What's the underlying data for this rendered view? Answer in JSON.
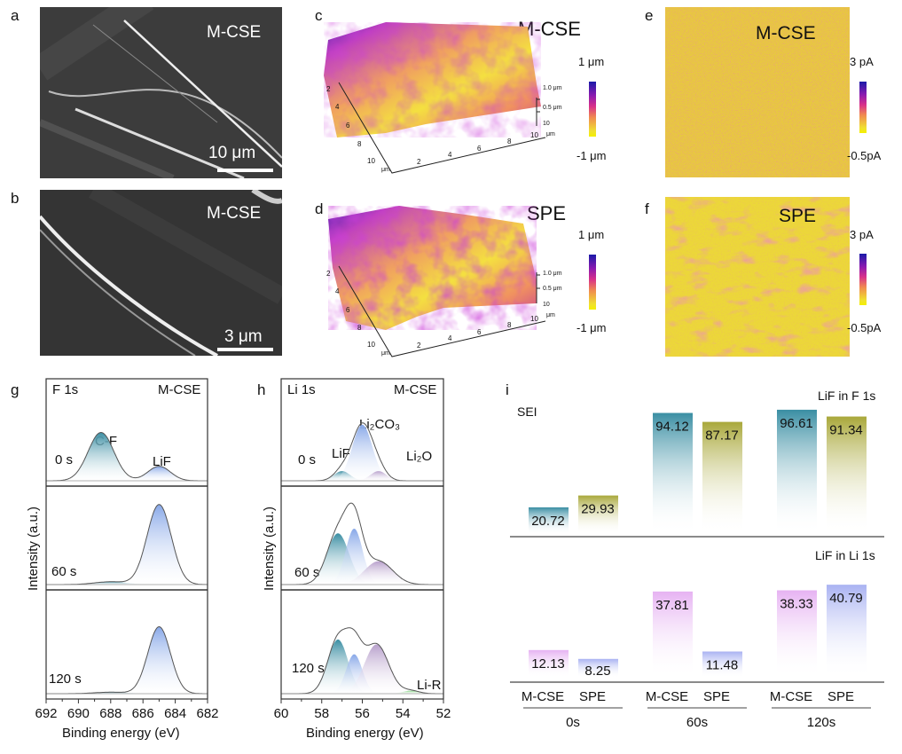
{
  "panels": {
    "a": {
      "letter": "a",
      "label": "M-CSE",
      "scale": "10 μm"
    },
    "b": {
      "letter": "b",
      "label": "M-CSE",
      "scale": "3 μm"
    },
    "c": {
      "letter": "c",
      "label": "M-CSE",
      "cb_max": "1 μm",
      "cb_min": "-1 μm"
    },
    "d": {
      "letter": "d",
      "label": "SPE",
      "cb_max": "1 μm",
      "cb_min": "-1 μm"
    },
    "e": {
      "letter": "e",
      "label": "M-CSE",
      "cb_max": "3 pA",
      "cb_min": "-0.5pA"
    },
    "f": {
      "letter": "f",
      "label": "SPE",
      "cb_max": "3 pA",
      "cb_min": "-0.5pA"
    },
    "g": {
      "letter": "g"
    },
    "h": {
      "letter": "h"
    },
    "i": {
      "letter": "i"
    }
  },
  "afm_axes": {
    "xy_ticks": [
      "2",
      "4",
      "6",
      "8",
      "10"
    ],
    "unit": "μm",
    "z_ticks": [
      "1.0 μm",
      "0.5 μm",
      "10"
    ],
    "z_unit": "μm"
  },
  "colors": {
    "teal": "#3a8ea3",
    "blue": "#88a8e8",
    "purple": "#b8a0cc",
    "green": "#7dd37d",
    "olive": "#a9a83a",
    "pink": "#e6b2f2",
    "lavender": "#a9b2f2"
  },
  "chart_data": [
    {
      "type": "line",
      "id": "g",
      "title": "F 1s",
      "sample": "M-CSE",
      "xlabel": "Binding energy (eV)",
      "ylabel": "Intensity (a.u.)",
      "xlim": [
        692,
        682
      ],
      "xticks": [
        "692",
        "690",
        "688",
        "686",
        "684",
        "682"
      ],
      "stacks": [
        {
          "label": "0 s",
          "peaks": [
            {
              "name": "C-F",
              "center": 688.6,
              "amp": 0.5,
              "sigma": 0.8,
              "color": "teal"
            },
            {
              "name": "LiF",
              "center": 685.0,
              "amp": 0.15,
              "sigma": 0.7,
              "color": "blue"
            }
          ]
        },
        {
          "label": "60 s",
          "peaks": [
            {
              "name": "C-F",
              "center": 688.0,
              "amp": 0.03,
              "sigma": 1.0,
              "color": "teal"
            },
            {
              "name": "LiF",
              "center": 685.0,
              "amp": 0.86,
              "sigma": 0.75,
              "color": "blue"
            }
          ]
        },
        {
          "label": "120 s",
          "peaks": [
            {
              "name": "C-F",
              "center": 688.0,
              "amp": 0.015,
              "sigma": 1.0,
              "color": "teal"
            },
            {
              "name": "LiF",
              "center": 685.0,
              "amp": 0.68,
              "sigma": 0.7,
              "color": "blue"
            }
          ]
        }
      ],
      "annotations": [
        "C-F",
        "LiF"
      ]
    },
    {
      "type": "line",
      "id": "h",
      "title": "Li 1s",
      "sample": "M-CSE",
      "xlabel": "Binding energy (eV)",
      "ylabel": "Intensity (a.u.)",
      "xlim": [
        60,
        52
      ],
      "xticks": [
        "60",
        "58",
        "56",
        "54",
        "52"
      ],
      "stacks": [
        {
          "label": "0 s",
          "peaks": [
            {
              "name": "LiF",
              "center": 57.0,
              "amp": 0.1,
              "sigma": 0.4,
              "color": "teal"
            },
            {
              "name": "Li₂CO₃",
              "center": 56.0,
              "amp": 0.58,
              "sigma": 0.5,
              "color": "blue"
            },
            {
              "name": "Li₂O",
              "center": 55.2,
              "amp": 0.1,
              "sigma": 0.4,
              "color": "purple"
            }
          ]
        },
        {
          "label": "60 s",
          "peaks": [
            {
              "name": "LiF",
              "center": 57.2,
              "amp": 0.55,
              "sigma": 0.55,
              "color": "teal"
            },
            {
              "name": "Li₂CO₃",
              "center": 56.4,
              "amp": 0.6,
              "sigma": 0.42,
              "color": "blue"
            },
            {
              "name": "Li₂O",
              "center": 55.2,
              "amp": 0.25,
              "sigma": 0.7,
              "color": "purple"
            }
          ]
        },
        {
          "label": "120 s",
          "peaks": [
            {
              "name": "LiF",
              "center": 57.2,
              "amp": 0.55,
              "sigma": 0.5,
              "color": "teal"
            },
            {
              "name": "Li₂CO₃",
              "center": 56.4,
              "amp": 0.4,
              "sigma": 0.4,
              "color": "blue"
            },
            {
              "name": "Li₂O",
              "center": 55.3,
              "amp": 0.5,
              "sigma": 0.6,
              "color": "purple"
            },
            {
              "name": "Li-R",
              "center": 53.6,
              "amp": 0.03,
              "sigma": 0.4,
              "color": "green"
            }
          ]
        }
      ],
      "annotations": [
        "LiF",
        "Li₂CO₃",
        "Li₂O",
        "Li-R"
      ]
    },
    {
      "type": "bar",
      "id": "i",
      "title": "SEI",
      "categories": [
        "M-CSE",
        "SPE",
        "M-CSE",
        "SPE",
        "M-CSE",
        "SPE"
      ],
      "groups": [
        "0s",
        "60s",
        "120s"
      ],
      "series": [
        {
          "name": "LiF in F 1s",
          "values": [
            20.72,
            29.93,
            94.12,
            87.17,
            96.61,
            91.34
          ],
          "colors": [
            "teal",
            "olive",
            "teal",
            "olive",
            "teal",
            "olive"
          ]
        },
        {
          "name": "LiF in Li 1s",
          "values": [
            12.13,
            8.25,
            37.81,
            11.48,
            38.33,
            40.79
          ],
          "colors": [
            "pink",
            "lavender",
            "pink",
            "lavender",
            "pink",
            "lavender"
          ]
        }
      ],
      "labels": [
        [
          "20.72",
          "29.93",
          "94.12",
          "87.17",
          "96.61",
          "91.34"
        ],
        [
          "12.13",
          "8.25",
          "37.81",
          "11.48",
          "38.33",
          "40.79"
        ]
      ]
    }
  ]
}
